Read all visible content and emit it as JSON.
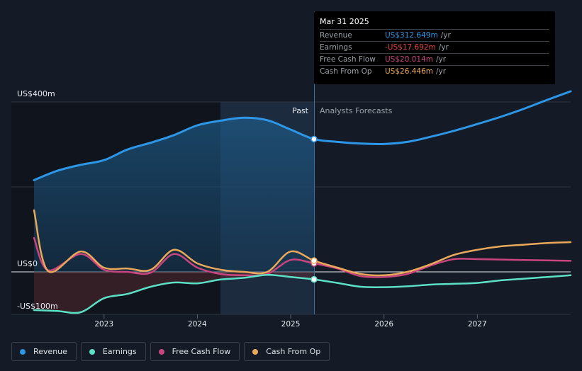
{
  "chart_data": {
    "type": "line",
    "x_ticks": [
      "2023",
      "2024",
      "2025",
      "2026",
      "2027"
    ],
    "y_ticks": [
      "US$400m",
      "US$0",
      "-US$100m"
    ],
    "ylim": [
      -100,
      400
    ],
    "past_label": "Past",
    "forecast_label": "Analysts Forecasts",
    "series": [
      {
        "name": "Revenue",
        "color": "#2d96e6",
        "points": [
          [
            2022.25,
            216
          ],
          [
            2022.5,
            238
          ],
          [
            2022.75,
            252
          ],
          [
            2023.0,
            263
          ],
          [
            2023.25,
            288
          ],
          [
            2023.5,
            304
          ],
          [
            2023.75,
            322
          ],
          [
            2024.0,
            345
          ],
          [
            2024.25,
            356
          ],
          [
            2024.5,
            363
          ],
          [
            2024.75,
            357
          ],
          [
            2025.0,
            335
          ],
          [
            2025.25,
            312.6
          ],
          [
            2025.5,
            306
          ],
          [
            2025.75,
            302
          ],
          [
            2026.0,
            301
          ],
          [
            2026.25,
            306
          ],
          [
            2026.5,
            318
          ],
          [
            2026.75,
            332
          ],
          [
            2027.0,
            348
          ],
          [
            2027.25,
            365
          ],
          [
            2027.5,
            384
          ],
          [
            2027.75,
            405
          ],
          [
            2028.0,
            425
          ]
        ]
      },
      {
        "name": "Earnings",
        "color": "#5ce0c6",
        "points": [
          [
            2022.25,
            -90
          ],
          [
            2022.5,
            -92
          ],
          [
            2022.75,
            -95
          ],
          [
            2023.0,
            -62
          ],
          [
            2023.25,
            -52
          ],
          [
            2023.5,
            -35
          ],
          [
            2023.75,
            -25
          ],
          [
            2024.0,
            -27
          ],
          [
            2024.25,
            -18
          ],
          [
            2024.5,
            -14
          ],
          [
            2024.75,
            -7
          ],
          [
            2025.0,
            -12
          ],
          [
            2025.25,
            -17.7
          ],
          [
            2025.5,
            -26
          ],
          [
            2025.75,
            -35
          ],
          [
            2026.0,
            -36
          ],
          [
            2026.25,
            -34
          ],
          [
            2026.5,
            -30
          ],
          [
            2026.75,
            -28
          ],
          [
            2027.0,
            -26
          ],
          [
            2027.25,
            -20
          ],
          [
            2027.5,
            -16
          ],
          [
            2027.75,
            -12
          ],
          [
            2028.0,
            -8
          ]
        ]
      },
      {
        "name": "Free Cash Flow",
        "color": "#c8457f",
        "points": [
          [
            2022.25,
            80
          ],
          [
            2022.4,
            4
          ],
          [
            2022.75,
            42
          ],
          [
            2023.0,
            5
          ],
          [
            2023.25,
            0
          ],
          [
            2023.5,
            -2
          ],
          [
            2023.75,
            42
          ],
          [
            2024.0,
            10
          ],
          [
            2024.25,
            -5
          ],
          [
            2024.5,
            -8
          ],
          [
            2024.75,
            -5
          ],
          [
            2025.0,
            28
          ],
          [
            2025.25,
            20
          ],
          [
            2025.5,
            8
          ],
          [
            2025.75,
            -10
          ],
          [
            2026.0,
            -12
          ],
          [
            2026.25,
            -5
          ],
          [
            2026.5,
            15
          ],
          [
            2026.75,
            30
          ],
          [
            2027.0,
            30
          ],
          [
            2027.25,
            29
          ],
          [
            2027.5,
            28
          ],
          [
            2027.75,
            27
          ],
          [
            2028.0,
            26
          ]
        ]
      },
      {
        "name": "Cash From Op",
        "color": "#eaa95a",
        "points": [
          [
            2022.25,
            145
          ],
          [
            2022.4,
            2
          ],
          [
            2022.75,
            48
          ],
          [
            2023.0,
            10
          ],
          [
            2023.25,
            8
          ],
          [
            2023.5,
            5
          ],
          [
            2023.75,
            52
          ],
          [
            2024.0,
            20
          ],
          [
            2024.25,
            5
          ],
          [
            2024.5,
            0
          ],
          [
            2024.75,
            0
          ],
          [
            2025.0,
            48
          ],
          [
            2025.25,
            26.4
          ],
          [
            2025.5,
            10
          ],
          [
            2025.75,
            -5
          ],
          [
            2026.0,
            -8
          ],
          [
            2026.25,
            0
          ],
          [
            2026.5,
            18
          ],
          [
            2026.75,
            40
          ],
          [
            2027.0,
            52
          ],
          [
            2027.25,
            60
          ],
          [
            2027.5,
            64
          ],
          [
            2027.75,
            68
          ],
          [
            2028.0,
            70
          ]
        ]
      }
    ],
    "highlight_x": 2025.25
  },
  "tooltip": {
    "date": "Mar 31 2025",
    "rows": [
      {
        "label": "Revenue",
        "value": "US$312.649m",
        "unit": "/yr",
        "color": "#2d96e6"
      },
      {
        "label": "Earnings",
        "value": "-US$17.692m",
        "unit": "/yr",
        "color": "#e0443c"
      },
      {
        "label": "Free Cash Flow",
        "value": "US$20.014m",
        "unit": "/yr",
        "color": "#c8457f"
      },
      {
        "label": "Cash From Op",
        "value": "US$26.446m",
        "unit": "/yr",
        "color": "#eaa95a"
      }
    ]
  },
  "legend": [
    {
      "label": "Revenue",
      "color": "#2d96e6"
    },
    {
      "label": "Earnings",
      "color": "#5ce0c6"
    },
    {
      "label": "Free Cash Flow",
      "color": "#c8457f"
    },
    {
      "label": "Cash From Op",
      "color": "#eaa95a"
    }
  ]
}
